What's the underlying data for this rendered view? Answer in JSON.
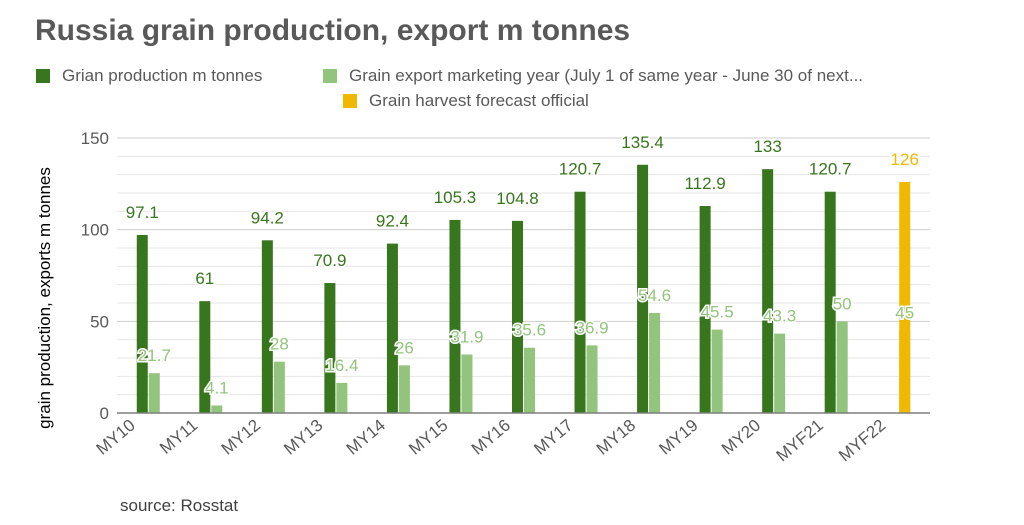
{
  "chart_data": {
    "type": "bar",
    "title": "Russia grain production, export m tonnes",
    "ylabel": "grain production, exports m tonnes",
    "xlabel": "",
    "ylim": [
      0,
      150
    ],
    "yticks": [
      0,
      50,
      100,
      150
    ],
    "grid": true,
    "legend_position": "top",
    "categories": [
      "MY10",
      "MY11",
      "MY12",
      "MY13",
      "MY14",
      "MY15",
      "MY16",
      "MY17",
      "MY18",
      "MY19",
      "MY20",
      "MYF21",
      "MYF22"
    ],
    "series": [
      {
        "name": "Grian production m tonnes",
        "color": "#38761d",
        "label_color": "#38761d",
        "values": [
          97.1,
          61,
          94.2,
          70.9,
          92.4,
          105.3,
          104.8,
          120.7,
          135.4,
          112.9,
          133,
          120.7,
          null
        ]
      },
      {
        "name": "Grain export marketing year (July 1 of same year - June 30 of next...",
        "color": "#93c47d",
        "label_color": "#93c47d",
        "values": [
          21.7,
          4.1,
          28,
          16.4,
          26,
          31.9,
          35.6,
          36.9,
          54.6,
          45.5,
          43.3,
          50,
          45
        ]
      },
      {
        "name": "Grain harvest forecast official",
        "color": "#f1b800",
        "label_color": "#f1b800",
        "values": [
          null,
          null,
          null,
          null,
          null,
          null,
          null,
          null,
          null,
          null,
          null,
          null,
          126
        ]
      }
    ]
  },
  "source": "source: Rosstat"
}
